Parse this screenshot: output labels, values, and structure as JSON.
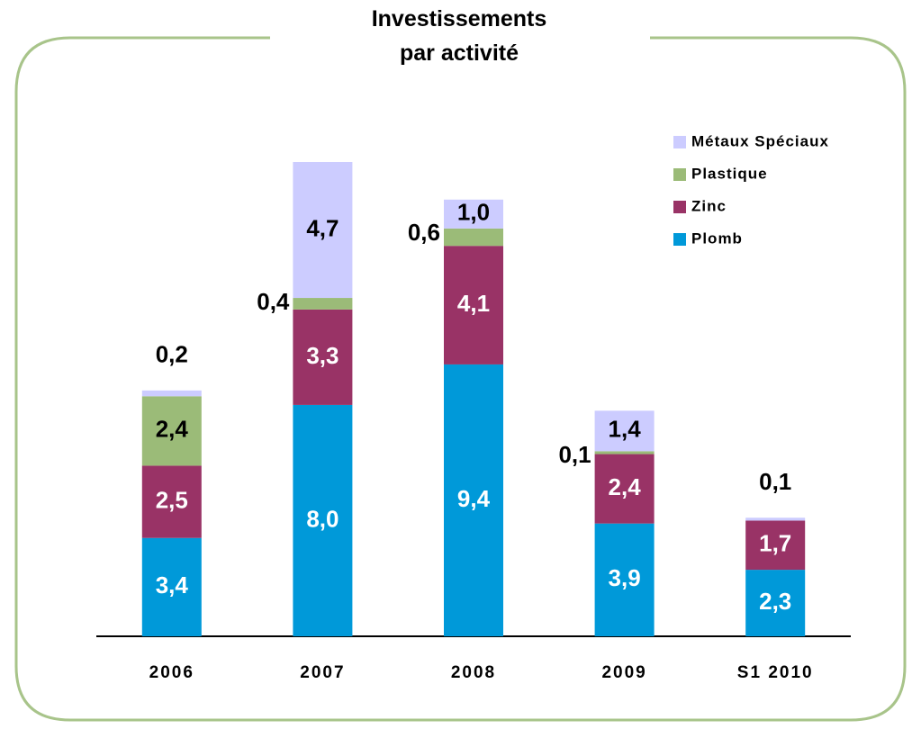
{
  "chart_data": {
    "type": "stacked_bar",
    "title": "Investissements par activité",
    "categories": [
      "2006",
      "2007",
      "2008",
      "2009",
      "S1 2010"
    ],
    "series": [
      {
        "name": "Plomb",
        "color": "#0099d9",
        "values": [
          3.4,
          8.0,
          9.4,
          3.9,
          2.3
        ],
        "value_labels": [
          "3,4",
          "8,0",
          "9,4",
          "3,9",
          "2,3"
        ]
      },
      {
        "name": "Zinc",
        "color": "#993366",
        "values": [
          2.5,
          3.3,
          4.1,
          2.4,
          1.7
        ],
        "value_labels": [
          "2,5",
          "3,3",
          "4,1",
          "2,4",
          "1,7"
        ]
      },
      {
        "name": "Plastique",
        "color": "#9bbb78",
        "values": [
          2.4,
          0.4,
          0.6,
          0.1,
          null
        ],
        "value_labels": [
          "2,4",
          "0,4",
          "0,6",
          "0,1",
          null
        ]
      },
      {
        "name": "Métaux Spéciaux",
        "color": "#ccccff",
        "values": [
          0.2,
          4.7,
          1.0,
          1.4,
          0.1
        ],
        "value_labels": [
          "0,2",
          "4,7",
          "1,0",
          "1,4",
          "0,1"
        ]
      }
    ],
    "legend": "top-right"
  }
}
